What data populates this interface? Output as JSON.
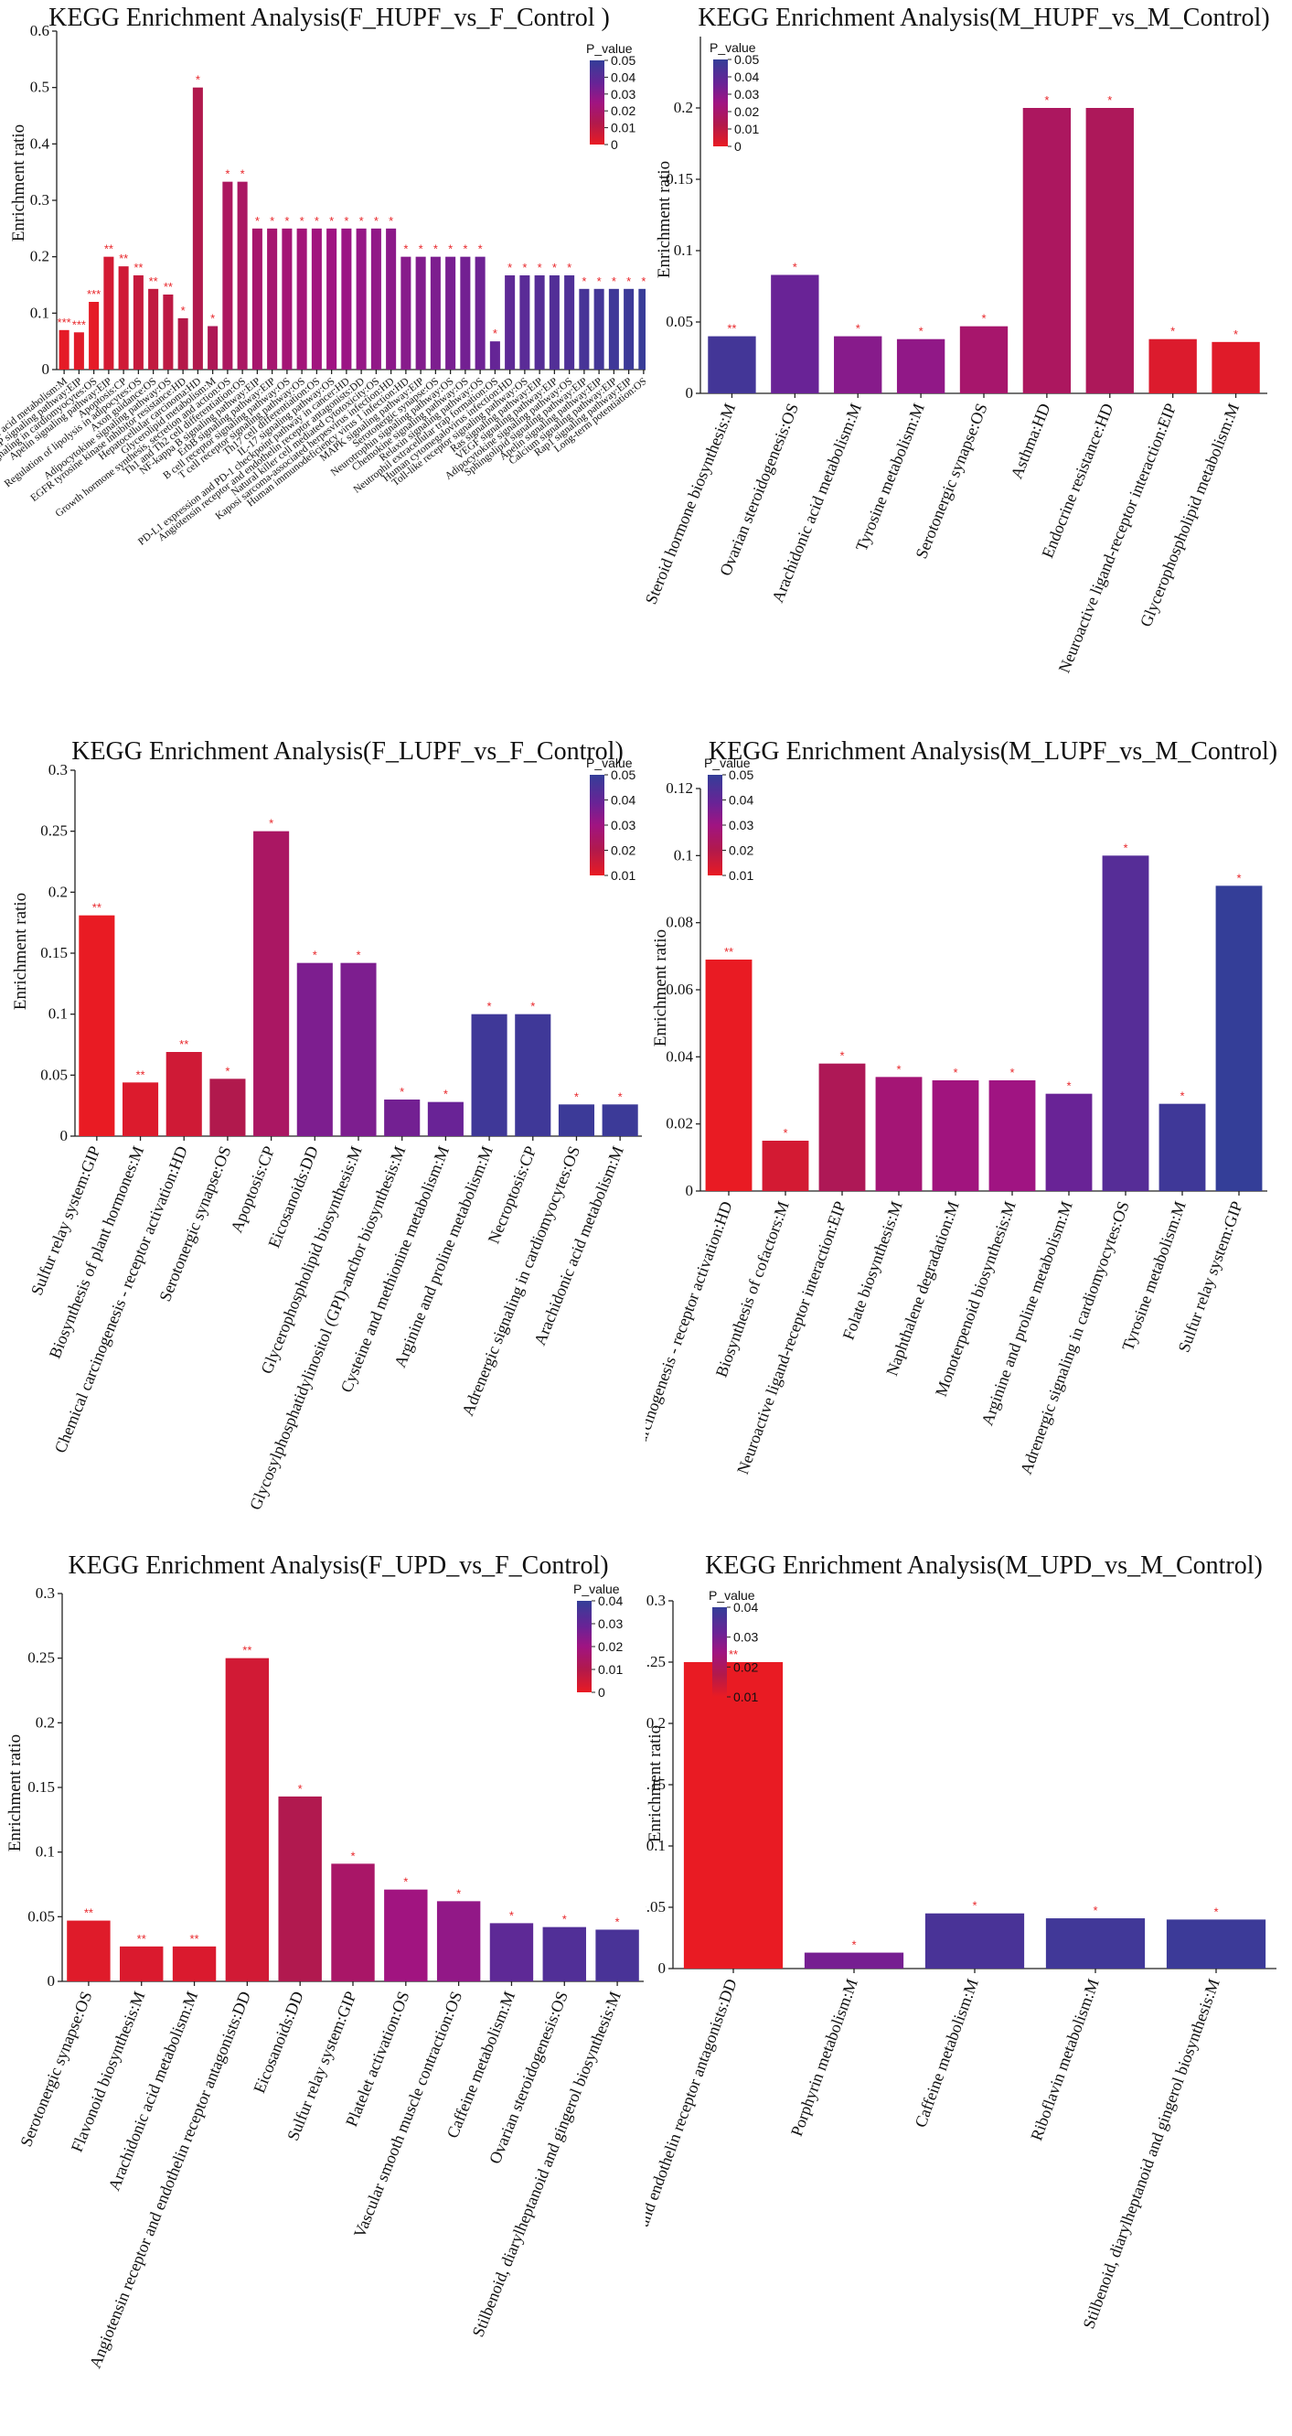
{
  "chart_data": [
    {
      "id": "p1",
      "type": "bar",
      "title": "KEGG Enrichment Analysis(F_HUPF_vs_F_Control )",
      "ylabel": "Enrichment ratio",
      "ylim": [
        0,
        0.6
      ],
      "yticks": [
        0,
        0.1,
        0.2,
        0.3,
        0.4,
        0.5,
        0.6
      ],
      "legend": {
        "title": "P_value",
        "ticks": [
          "0.05",
          "0.04",
          "0.03",
          "0.02",
          "0.01",
          "0"
        ],
        "max": 0.05,
        "position": "top-right"
      },
      "categories": [
        "Arachidonic acid metabolism:M",
        "cAMP signaling pathway:EIP",
        "Adrenergic signaling in cardiomyocytes:OS",
        "Apelin signaling pathway:EIP",
        "Apoptosis:CP",
        "Regulation of lipolysis in adipocytes:OS",
        "Axon guidance:OS",
        "Adipocytokine signaling pathway:OS",
        "EGFR tyrosine kinase inhibitor resistance:HD",
        "Hepatocellular carcinoma:HD",
        "Glycerolipid metabolism:M",
        "Growth hormone synthesis, secretion and action:OS",
        "Th1 and Th2 cell differentiation:OS",
        "NF-kappa B signaling pathway:EIP",
        "ErbB signaling pathway:EIP",
        "B cell receptor signaling pathway:OS",
        "T cell receptor signaling pathway:OS",
        "Th17 cell differentiation:OS",
        "IL-17 signaling pathway:OS",
        "PD-L1 expression and PD-1 checkpoint pathway in cancer:HD",
        "Angiotensin receptor and endothelin receptor antagonists:DD",
        "Natural killer cell mediated cytotoxicity:OS",
        "Kaposi sarcoma-associated herpesvirus infection:HD",
        "Human immunodeficiency virus 1 infection:HD",
        "MAPK signaling pathway:EIP",
        "Serotonergic synapse:OS",
        "Neurotrophin signaling pathway:OS",
        "Chemokine signaling pathway:OS",
        "Relaxin signaling pathway:OS",
        "Neutrophil extracellular trap formation:OS",
        "Human cytomegalovirus infection:HD",
        "Toll-like receptor signaling pathway:OS",
        "Ras signaling pathway:EIP",
        "VEGF signaling pathway:EIP",
        "Adipocytokine signaling pathway:OS",
        "Sphingolipid signaling pathway:EIP",
        "Apelin signaling pathway:EIP",
        "Calcium signaling pathway:EIP",
        "Rap1 signaling pathway:EIP",
        "Long-term potentiation:OS"
      ],
      "values": [
        0.07,
        0.066,
        0.12,
        0.2,
        0.183,
        0.167,
        0.143,
        0.133,
        0.091,
        0.5,
        0.077,
        0.333,
        0.333,
        0.25,
        0.25,
        0.25,
        0.25,
        0.25,
        0.25,
        0.25,
        0.25,
        0.25,
        0.25,
        0.2,
        0.2,
        0.2,
        0.2,
        0.2,
        0.2,
        0.05,
        0.167,
        0.167,
        0.167,
        0.167,
        0.167,
        0.143,
        0.143,
        0.143,
        0.143,
        0.143
      ],
      "pvalues": [
        0.001,
        0.002,
        0.001,
        0.005,
        0.006,
        0.008,
        0.009,
        0.01,
        0.012,
        0.013,
        0.015,
        0.017,
        0.018,
        0.02,
        0.021,
        0.022,
        0.023,
        0.024,
        0.025,
        0.026,
        0.027,
        0.028,
        0.029,
        0.03,
        0.031,
        0.032,
        0.033,
        0.034,
        0.035,
        0.037,
        0.039,
        0.04,
        0.041,
        0.042,
        0.043,
        0.045,
        0.046,
        0.047,
        0.048,
        0.049
      ],
      "stars": [
        "***",
        "***",
        "***",
        "**",
        "**",
        "**",
        "**",
        "**",
        "*",
        "*",
        "*",
        "*",
        "*",
        "*",
        "*",
        "*",
        "*",
        "*",
        "*",
        "*",
        "*",
        "*",
        "*",
        "*",
        "*",
        "*",
        "*",
        "*",
        "*",
        "*",
        "*",
        "*",
        "*",
        "*",
        "*",
        "*",
        "*",
        "*",
        "*",
        "*"
      ]
    },
    {
      "id": "p2",
      "type": "bar",
      "title": "KEGG Enrichment Analysis(M_HUPF_vs_M_Control)",
      "ylabel": "Enrichment ratio",
      "ylim": [
        0,
        0.25
      ],
      "yticks": [
        0,
        0.05,
        0.1,
        0.15,
        0.2
      ],
      "legend": {
        "title": "P_value",
        "ticks": [
          "0.05",
          "0.04",
          "0.03",
          "0.02",
          "0.01",
          "0"
        ],
        "max": 0.05,
        "position": "top-right"
      },
      "categories": [
        "Steroid hormone biosynthesis:M",
        "Ovarian steroidogenesis:OS",
        "Arachidonic acid metabolism:M",
        "Tyrosine metabolism:M",
        "Serotonergic synapse:OS",
        "Asthma:HD",
        "Endocrine resistance:HD",
        "Neuroactive ligand-receptor interaction:EIP",
        "Glycerophospholipid metabolism:M"
      ],
      "values": [
        0.04,
        0.083,
        0.04,
        0.038,
        0.047,
        0.2,
        0.2,
        0.038,
        0.036
      ],
      "pvalues": [
        0.046,
        0.036,
        0.03,
        0.028,
        0.02,
        0.017,
        0.016,
        0.003,
        0.002
      ],
      "stars": [
        "**",
        "*",
        "*",
        "*",
        "*",
        "*",
        "*",
        "*",
        "*"
      ]
    },
    {
      "id": "p3",
      "type": "bar",
      "title": "KEGG Enrichment Analysis(F_LUPF_vs_F_Control)",
      "ylabel": "Enrichment ratio",
      "ylim": [
        0,
        0.3
      ],
      "yticks": [
        0,
        0.05,
        0.1,
        0.15,
        0.2,
        0.25,
        0.3
      ],
      "legend": {
        "title": "P_value",
        "ticks": [
          "0.05",
          "0.04",
          "0.03",
          "0.02",
          "0.01"
        ],
        "max": 0.05,
        "position": "top-right"
      },
      "categories": [
        "Sulfur relay system:GIP",
        "Biosynthesis of plant hormones:M",
        "Chemical carcinogenesis - receptor activation:HD",
        "Serotonergic synapse:OS",
        "Apoptosis:CP",
        "Eicosanoids:DD",
        "Glycerophospholipid biosynthesis:M",
        "Glycosylphosphatidylinositol (GPI)-anchor biosynthesis:M",
        "Cysteine and methionine metabolism:M",
        "Arginine and proline metabolism:M",
        "Necroptosis:CP",
        "Adrenergic signaling in cardiomyocytes:OS",
        "Arachidonic acid metabolism:M"
      ],
      "values": [
        0.181,
        0.044,
        0.069,
        0.047,
        0.25,
        0.142,
        0.142,
        0.03,
        0.028,
        0.1,
        0.1,
        0.026,
        0.026
      ],
      "pvalues": [
        0.0,
        0.003,
        0.006,
        0.013,
        0.018,
        0.032,
        0.032,
        0.034,
        0.036,
        0.047,
        0.047,
        0.048,
        0.048
      ],
      "stars": [
        "**",
        "**",
        "**",
        "*",
        "*",
        "*",
        "*",
        "*",
        "*",
        "*",
        "*",
        "*",
        "*"
      ]
    },
    {
      "id": "p4",
      "type": "bar",
      "title": "KEGG Enrichment Analysis(M_LUPF_vs_M_Control)",
      "ylabel": "Enrichment ratio",
      "ylim": [
        0,
        0.12
      ],
      "yticks": [
        0,
        0.02,
        0.04,
        0.06,
        0.08,
        0.1,
        0.12
      ],
      "legend": {
        "title": "P_value",
        "ticks": [
          "0.05",
          "0.04",
          "0.03",
          "0.02",
          "0.01"
        ],
        "max": 0.05,
        "position": "top-right"
      },
      "categories": [
        "Chemical carcinogenesis - receptor activation:HD",
        "Biosynthesis of cofactors:M",
        "Neuroactive ligand-receptor interaction:EIP",
        "Folate biosynthesis:M",
        "Naphthalene degradation:M",
        "Monoterpenoid biosynthesis:M",
        "Arginine and proline metabolism:M",
        "Adrenergic signaling in cardiomyocytes:OS",
        "Tyrosine metabolism:M",
        "Sulfur relay system:GIP"
      ],
      "values": [
        0.069,
        0.015,
        0.038,
        0.034,
        0.033,
        0.033,
        0.029,
        0.1,
        0.026,
        0.091
      ],
      "pvalues": [
        0.0,
        0.005,
        0.015,
        0.022,
        0.024,
        0.025,
        0.036,
        0.041,
        0.047,
        0.05
      ],
      "stars": [
        "**",
        "*",
        "*",
        "*",
        "*",
        "*",
        "*",
        "*",
        "*",
        "*"
      ]
    },
    {
      "id": "p5",
      "type": "bar",
      "title": "KEGG Enrichment Analysis(F_UPD_vs_F_Control)",
      "ylabel": "Enrichment ratio",
      "ylim": [
        0,
        0.3
      ],
      "yticks": [
        0,
        0.05,
        0.1,
        0.15,
        0.2,
        0.25,
        0.3
      ],
      "legend": {
        "title": "P_value",
        "ticks": [
          "0.04",
          "0.03",
          "0.02",
          "0.01",
          "0"
        ],
        "max": 0.045,
        "position": "top-right"
      },
      "categories": [
        "Serotonergic synapse:OS",
        "Flavonoid biosynthesis:M",
        "Arachidonic acid metabolism:M",
        "Angiotensin receptor and endothelin receptor antagonists:DD",
        "Eicosanoids:DD",
        "Sulfur relay system:GIP",
        "Platelet activation:OS",
        "Vascular smooth muscle contraction:OS",
        "Caffeine metabolism:M",
        "Ovarian steroidogenesis:OS",
        "Stilbenoid, diarylheptanoid and gingerol biosynthesis:M"
      ],
      "values": [
        0.047,
        0.027,
        0.027,
        0.25,
        0.143,
        0.091,
        0.071,
        0.062,
        0.045,
        0.042,
        0.04
      ],
      "pvalues": [
        0.002,
        0.003,
        0.003,
        0.005,
        0.012,
        0.017,
        0.022,
        0.025,
        0.035,
        0.038,
        0.04
      ],
      "stars": [
        "**",
        "**",
        "**",
        "**",
        "*",
        "*",
        "*",
        "*",
        "*",
        "*",
        "*"
      ]
    },
    {
      "id": "p6",
      "type": "bar",
      "title": "KEGG Enrichment Analysis(M_UPD_vs_M_Control)",
      "ylabel": "Enrichment ratio",
      "ylim": [
        0,
        0.3
      ],
      "yticks": [
        0,
        0.05,
        0.1,
        0.15,
        0.2,
        0.25,
        0.3
      ],
      "legend": {
        "title": "P_value",
        "ticks": [
          "0.04",
          "0.03",
          "0.02",
          "0.01"
        ],
        "max": 0.045,
        "position": "top-right"
      },
      "categories": [
        "Angiotensin receptor and endothelin receptor antagonists:DD",
        "Porphyrin metabolism:M",
        "Caffeine metabolism:M",
        "Riboflavin metabolism:M",
        "Stilbenoid, diarylheptanoid and gingerol biosynthesis:M"
      ],
      "values": [
        0.25,
        0.013,
        0.045,
        0.041,
        0.04
      ],
      "pvalues": [
        0.0,
        0.03,
        0.04,
        0.042,
        0.043
      ],
      "stars": [
        "**",
        "*",
        "*",
        "*",
        "*"
      ]
    }
  ]
}
